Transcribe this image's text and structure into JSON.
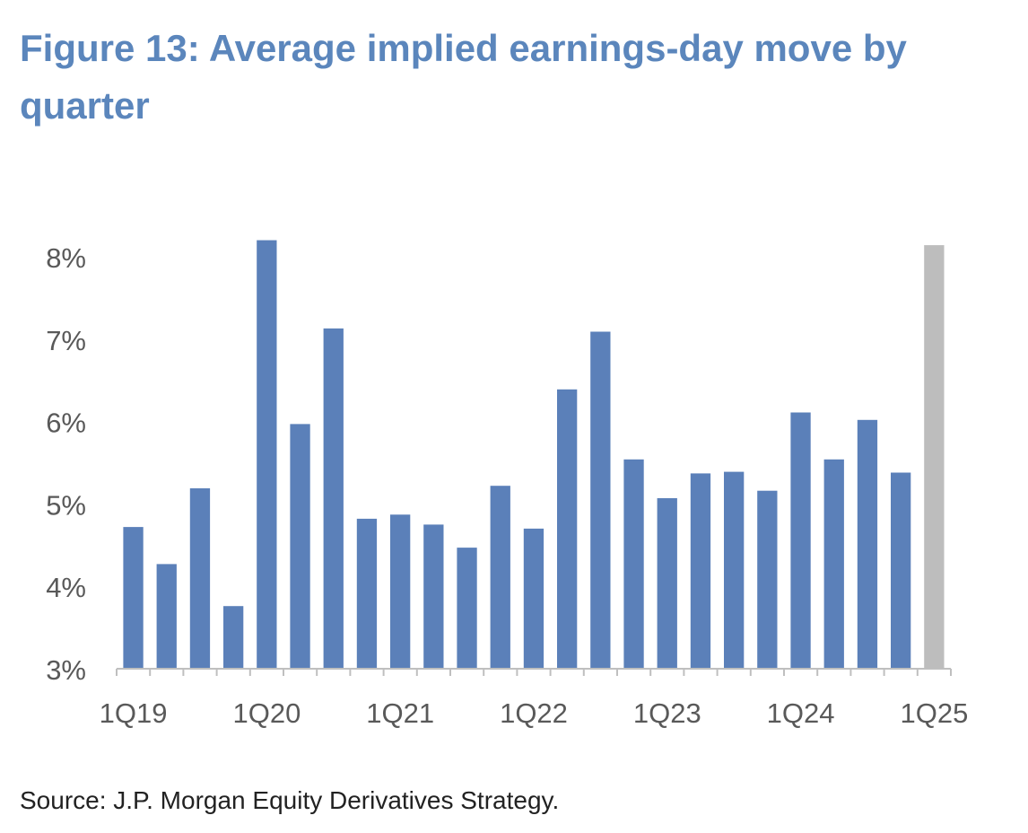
{
  "title": "Figure 13: Average implied earnings-day move by quarter",
  "source": "Source: J.P. Morgan Equity Derivatives Strategy.",
  "colors": {
    "title": "#5b86bc",
    "bar": "#5b80b9",
    "highlight_bar": "#bdbdbd",
    "axis": "#bfbfbf",
    "tick_text": "#595959"
  },
  "chart_data": {
    "type": "bar",
    "title": "Figure 13: Average implied earnings-day move by quarter",
    "xlabel": "",
    "ylabel": "",
    "ylim": [
      3,
      8
    ],
    "yticks": [
      "3%",
      "4%",
      "5%",
      "6%",
      "7%",
      "8%"
    ],
    "ytick_values": [
      3,
      4,
      5,
      6,
      7,
      8
    ],
    "xtick_labels": [
      "1Q19",
      "1Q20",
      "1Q21",
      "1Q22",
      "1Q23",
      "1Q24",
      "1Q25"
    ],
    "categories": [
      "1Q19",
      "2Q19",
      "3Q19",
      "4Q19",
      "1Q20",
      "2Q20",
      "3Q20",
      "4Q20",
      "1Q21",
      "2Q21",
      "3Q21",
      "4Q21",
      "1Q22",
      "2Q22",
      "3Q22",
      "4Q22",
      "1Q23",
      "2Q23",
      "3Q23",
      "4Q23",
      "1Q24",
      "2Q24",
      "3Q24",
      "4Q24",
      "1Q25"
    ],
    "values": [
      4.72,
      4.27,
      5.19,
      3.76,
      8.2,
      5.97,
      7.13,
      4.82,
      4.87,
      4.75,
      4.47,
      5.22,
      4.7,
      6.39,
      7.09,
      5.54,
      5.07,
      5.37,
      5.39,
      5.16,
      6.11,
      5.54,
      6.02,
      5.38,
      8.14
    ],
    "highlight": [
      "1Q25"
    ],
    "grid": false,
    "legend": "none"
  }
}
